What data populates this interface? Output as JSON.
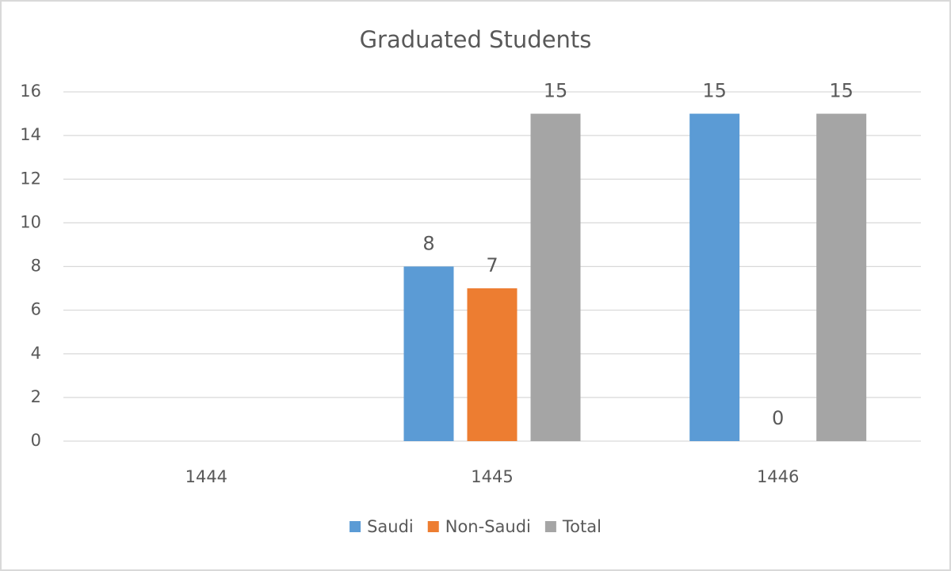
{
  "chart_data": {
    "type": "bar",
    "title": "Graduated Students",
    "categories": [
      "1444",
      "1445",
      "1446"
    ],
    "series": [
      {
        "name": "Saudi",
        "color": "#5b9bd5",
        "values": [
          null,
          8,
          15
        ]
      },
      {
        "name": "Non-Saudi",
        "color": "#ed7d31",
        "values": [
          null,
          7,
          0
        ]
      },
      {
        "name": "Total",
        "color": "#a5a5a5",
        "values": [
          null,
          15,
          15
        ]
      }
    ],
    "ylim": [
      0,
      16
    ],
    "yticks": [
      0,
      2,
      4,
      6,
      8,
      10,
      12,
      14,
      16
    ],
    "grid": true,
    "legend": "bottom"
  }
}
